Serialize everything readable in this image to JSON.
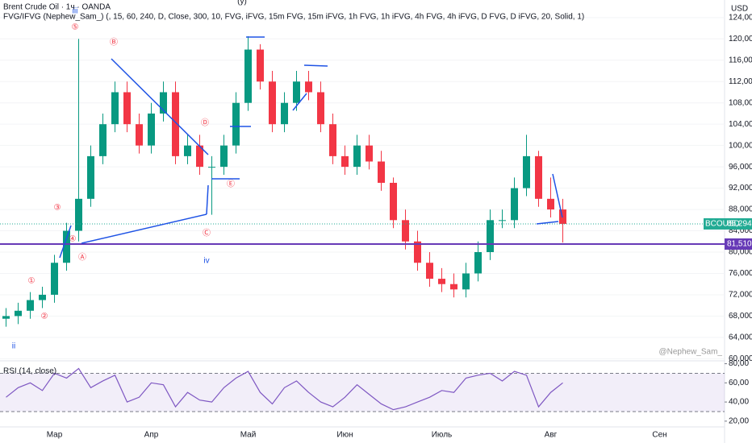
{
  "chart_data": [
    {
      "type": "candlestick",
      "title": "Brent Crude Oil · 1ч · OANDA",
      "subtitle": "FVG/IFVG (Nephew_Sam_) (, 15, 60, 240, D, Close, 300, 10, FVG, iFVG, 15m FVG, 15m iFVG, 1h FVG, 1h iFVG, 4h FVG, 4h iFVG, D FVG, D iFVG, 20, Solid, 1)",
      "currency": "USD",
      "watermark": "@Nephew_Sam_",
      "up_color": "#089981",
      "down_color": "#f23645",
      "categories": [
        null,
        null,
        null,
        null,
        "Мар",
        null,
        null,
        null,
        null,
        null,
        null,
        null,
        "Апр",
        null,
        null,
        null,
        null,
        null,
        null,
        null,
        "Май",
        null,
        null,
        null,
        null,
        null,
        null,
        null,
        "Июн",
        null,
        null,
        null,
        null,
        null,
        null,
        null,
        "Июль",
        null,
        null,
        null,
        null,
        null,
        null,
        null,
        null,
        "Авг",
        null,
        null,
        null,
        null,
        null,
        null,
        null,
        null,
        "Сен",
        null,
        null,
        null,
        null,
        null
      ],
      "open": [
        67.5,
        68,
        69,
        71,
        72,
        78,
        84,
        90,
        98,
        104,
        110,
        104,
        100,
        106,
        110,
        98,
        100,
        96,
        96,
        100,
        108,
        118,
        112,
        104,
        108,
        112,
        110,
        104,
        98,
        96,
        100,
        97,
        93,
        86,
        82,
        78,
        75,
        74,
        73,
        76,
        80,
        86,
        86,
        92,
        98,
        90,
        88,
        null,
        null,
        null,
        null,
        null,
        null,
        null,
        null,
        null,
        null,
        null,
        null,
        null
      ],
      "high": [
        69.5,
        70.5,
        72.5,
        73.5,
        79.5,
        85.5,
        120,
        100,
        106,
        112,
        112,
        106,
        108,
        112,
        112,
        102,
        102,
        98,
        102,
        110,
        120.5,
        119,
        114,
        110,
        114,
        114,
        112,
        106,
        100,
        102,
        102,
        99,
        94,
        88,
        84,
        80,
        77,
        76,
        78,
        82,
        88,
        88,
        94,
        102,
        99,
        94,
        90,
        null,
        null,
        null,
        null,
        null,
        null,
        null,
        null,
        null,
        null,
        null,
        null,
        null
      ],
      "low": [
        66,
        66.5,
        67.5,
        69.5,
        70.5,
        76.5,
        82,
        88.5,
        96.5,
        102.5,
        102.5,
        98.5,
        98.5,
        104.5,
        96.5,
        96.5,
        94.5,
        87,
        94.5,
        98.5,
        106.5,
        110.5,
        102.5,
        102.5,
        106.5,
        108.5,
        102.5,
        96.5,
        94.5,
        94.5,
        95.5,
        91.5,
        84.5,
        80.5,
        76.5,
        73.5,
        72.5,
        71.5,
        71.5,
        74.5,
        78.5,
        84.5,
        84.5,
        90.5,
        88.5,
        86.5,
        81.8,
        null,
        null,
        null,
        null,
        null,
        null,
        null,
        null,
        null,
        null,
        null,
        null,
        null
      ],
      "close": [
        68,
        69,
        71,
        72,
        78,
        84,
        90,
        98,
        104,
        110,
        104,
        100,
        106,
        110,
        98,
        100,
        96,
        96,
        100,
        108,
        118,
        112,
        104,
        108,
        112,
        110,
        104,
        98,
        96,
        100,
        97,
        93,
        86,
        82,
        78,
        75,
        74,
        73,
        76,
        80,
        86,
        86,
        92,
        98,
        90,
        88,
        85.294,
        null,
        null,
        null,
        null,
        null,
        null,
        null,
        null,
        null,
        null,
        null,
        null,
        null
      ],
      "ylim": [
        59.6,
        127.3
      ],
      "yticks": [
        {
          "value": 60,
          "label": "60,000"
        },
        {
          "value": 64,
          "label": "64,000"
        },
        {
          "value": 68,
          "label": "68,000"
        },
        {
          "value": 72,
          "label": "72,000"
        },
        {
          "value": 76,
          "label": "76,000"
        },
        {
          "value": 80,
          "label": "80,000"
        },
        {
          "value": 84,
          "label": "84,000"
        },
        {
          "value": 88,
          "label": "88,000"
        },
        {
          "value": 92,
          "label": "92,000"
        },
        {
          "value": 96,
          "label": "96,000"
        },
        {
          "value": 100,
          "label": "100,000"
        },
        {
          "value": 104,
          "label": "104,000"
        },
        {
          "value": 108,
          "label": "108,000"
        },
        {
          "value": 112,
          "label": "112,000"
        },
        {
          "value": 116,
          "label": "116,000"
        },
        {
          "value": 120,
          "label": "120,000"
        },
        {
          "value": 124,
          "label": "124,000"
        }
      ],
      "lines": [
        {
          "name": "BCOUSD",
          "value": 85.294,
          "label": "85,294",
          "color": "#22ab94"
        },
        {
          "value": 81.51,
          "label": "81,510",
          "color": "#673ab7"
        }
      ],
      "annotations": [
        "(y)",
        "iii",
        "⑤",
        "Ⓑ",
        "Ⓓ",
        "Ⓔ",
        "Ⓒ",
        "iv",
        "③",
        "④",
        "Ⓐ",
        "①",
        "②",
        "ii"
      ]
    },
    {
      "type": "line",
      "title": "RSI (14, close)",
      "color": "#7e57c2",
      "values": [
        45,
        55,
        60,
        52,
        70,
        65,
        75,
        55,
        62,
        68,
        40,
        45,
        60,
        58,
        35,
        50,
        42,
        40,
        55,
        65,
        72,
        50,
        38,
        55,
        62,
        50,
        40,
        35,
        45,
        58,
        48,
        38,
        32,
        35,
        40,
        45,
        52,
        50,
        65,
        68,
        70,
        62,
        72,
        68,
        35,
        50,
        60,
        null,
        null,
        null,
        null,
        null,
        null,
        null,
        null,
        null,
        null,
        null,
        null,
        null
      ],
      "bands": [
        30,
        70
      ],
      "ylim": [
        14,
        83
      ],
      "yticks": [
        {
          "value": 20,
          "label": "20,00"
        },
        {
          "value": 40,
          "label": "40,00"
        },
        {
          "value": 60,
          "label": "60,00"
        },
        {
          "value": 80,
          "label": "80,00"
        }
      ]
    }
  ]
}
